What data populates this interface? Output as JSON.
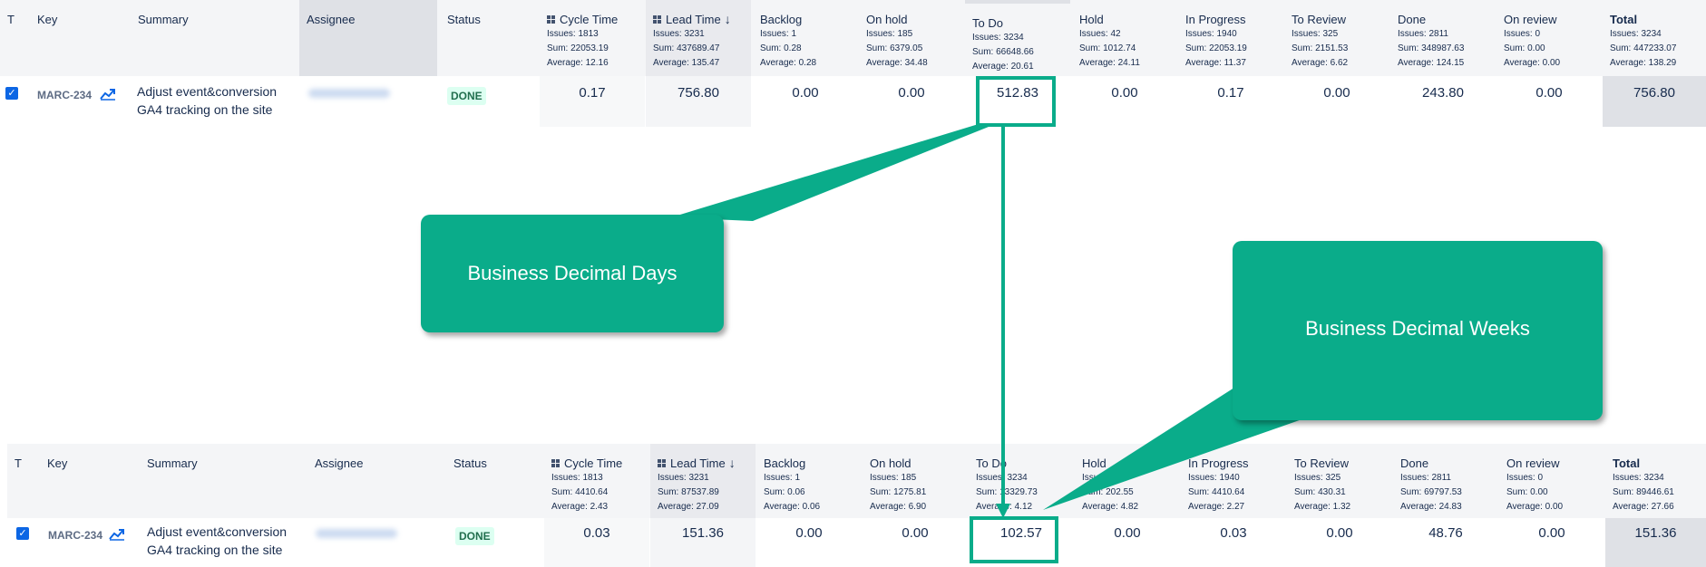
{
  "colors": {
    "accent": "#0aac8a",
    "done_bg": "#dcfff1",
    "done_text": "#216e4e",
    "checkbox": "#0c66e4"
  },
  "tables": [
    {
      "headers": {
        "t": "T",
        "key": "Key",
        "summary": "Summary",
        "assignee": "Assignee",
        "status": "Status"
      },
      "metrics": [
        {
          "title": "Cycle Time",
          "icon": "grid-icon",
          "issues": "Issues: 1813",
          "sum": "Sum: 22053.19",
          "avg": "Average: 12.16",
          "value": "0.17"
        },
        {
          "title": "Lead Time",
          "icon": "grid-icon",
          "sort": "sort-down-icon",
          "issues": "Issues: 3231",
          "sum": "Sum: 437689.47",
          "avg": "Average: 135.47",
          "value": "756.80"
        },
        {
          "title": "Backlog",
          "issues": "Issues: 1",
          "sum": "Sum: 0.28",
          "avg": "Average: 0.28",
          "value": "0.00"
        },
        {
          "title": "On hold",
          "issues": "Issues: 185",
          "sum": "Sum: 6379.05",
          "avg": "Average: 34.48",
          "value": "0.00"
        },
        {
          "title": "To Do",
          "issues": "Issues: 3234",
          "sum": "Sum: 66648.66",
          "avg": "Average: 20.61",
          "value": "512.83"
        },
        {
          "title": "Hold",
          "issues": "Issues: 42",
          "sum": "Sum: 1012.74",
          "avg": "Average: 24.11",
          "value": "0.00"
        },
        {
          "title": "In Progress",
          "issues": "Issues: 1940",
          "sum": "Sum: 22053.19",
          "avg": "Average: 11.37",
          "value": "0.17"
        },
        {
          "title": "To Review",
          "issues": "Issues: 325",
          "sum": "Sum: 2151.53",
          "avg": "Average: 6.62",
          "value": "0.00"
        },
        {
          "title": "Done",
          "issues": "Issues: 2811",
          "sum": "Sum: 348987.63",
          "avg": "Average: 124.15",
          "value": "243.80"
        },
        {
          "title": "On review",
          "issues": "Issues: 0",
          "sum": "Sum: 0.00",
          "avg": "Average: 0.00",
          "value": "0.00"
        },
        {
          "title": "Total",
          "issues": "Issues: 3234",
          "sum": "Sum: 447233.07",
          "avg": "Average: 138.29",
          "value": "756.80"
        }
      ],
      "row": {
        "checkbox": "✓",
        "key": "MARC-234",
        "summary_line1": "Adjust event&conversion",
        "summary_line2": "GA4 tracking on the site",
        "status": "DONE"
      }
    },
    {
      "headers": {
        "t": "T",
        "key": "Key",
        "summary": "Summary",
        "assignee": "Assignee",
        "status": "Status"
      },
      "metrics": [
        {
          "title": "Cycle Time",
          "icon": "grid-icon",
          "issues": "Issues: 1813",
          "sum": "Sum: 4410.64",
          "avg": "Average: 2.43",
          "value": "0.03"
        },
        {
          "title": "Lead Time",
          "icon": "grid-icon",
          "sort": "sort-down-icon",
          "issues": "Issues: 3231",
          "sum": "Sum: 87537.89",
          "avg": "Average: 27.09",
          "value": "151.36"
        },
        {
          "title": "Backlog",
          "issues": "Issues: 1",
          "sum": "Sum: 0.06",
          "avg": "Average: 0.06",
          "value": "0.00"
        },
        {
          "title": "On hold",
          "issues": "Issues: 185",
          "sum": "Sum: 1275.81",
          "avg": "Average: 6.90",
          "value": "0.00"
        },
        {
          "title": "To Do",
          "issues": "Issues: 3234",
          "sum": "Sum: 13329.73",
          "avg": "Average: 4.12",
          "value": "102.57"
        },
        {
          "title": "Hold",
          "issues": "Issues: 42",
          "sum": "Sum: 202.55",
          "avg": "Average: 4.82",
          "value": "0.00"
        },
        {
          "title": "In Progress",
          "issues": "Issues: 1940",
          "sum": "Sum: 4410.64",
          "avg": "Average: 2.27",
          "value": "0.03"
        },
        {
          "title": "To Review",
          "issues": "Issues: 325",
          "sum": "Sum: 430.31",
          "avg": "Average: 1.32",
          "value": "0.00"
        },
        {
          "title": "Done",
          "issues": "Issues: 2811",
          "sum": "Sum: 69797.53",
          "avg": "Average: 24.83",
          "value": "48.76"
        },
        {
          "title": "On review",
          "issues": "Issues: 0",
          "sum": "Sum: 0.00",
          "avg": "Average: 0.00",
          "value": "0.00"
        },
        {
          "title": "Total",
          "issues": "Issues: 3234",
          "sum": "Sum: 89446.61",
          "avg": "Average: 27.66",
          "value": "151.36"
        }
      ],
      "row": {
        "checkbox": "✓",
        "key": "MARC-234",
        "summary_line1": "Adjust event&conversion",
        "summary_line2": "GA4 tracking on the site",
        "status": "DONE"
      }
    }
  ],
  "callouts": {
    "days": "Business Decimal Days",
    "weeks": "Business Decimal Weeks"
  }
}
